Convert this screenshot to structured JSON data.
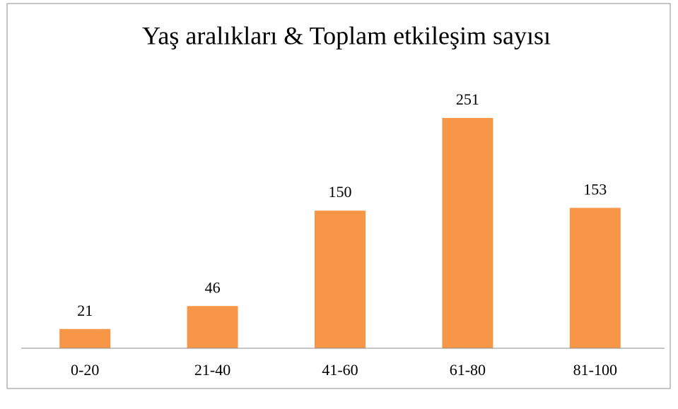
{
  "chart_data": {
    "type": "bar",
    "title": "Yaş aralıkları & Toplam etkileşim sayısı",
    "categories": [
      "0-20",
      "21-40",
      "41-60",
      "61-80",
      "81-100"
    ],
    "values": [
      21,
      46,
      150,
      251,
      153
    ],
    "color": "#f79646"
  }
}
